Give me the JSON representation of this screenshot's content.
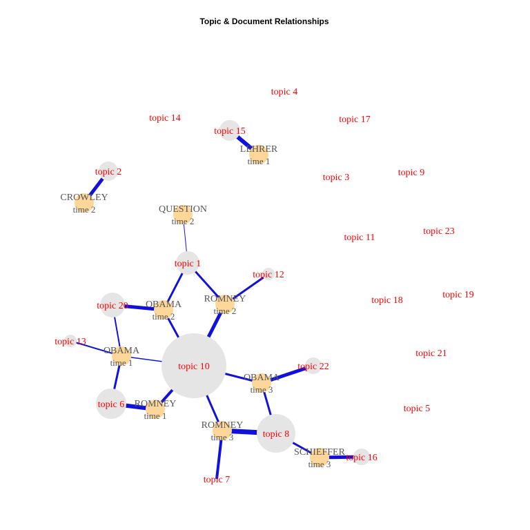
{
  "title": "Topic & Document Relationships",
  "colors": {
    "edge": "#1111dd",
    "topic_node": "#e5e5e5",
    "doc_node": "#fdd699",
    "topic_label": "#ff0000",
    "doc_label": "#555555"
  },
  "topics": [
    {
      "id": "t1",
      "label": "topic 1",
      "connected": true
    },
    {
      "id": "t2",
      "label": "topic 2",
      "connected": true
    },
    {
      "id": "t3",
      "label": "topic 3",
      "connected": false
    },
    {
      "id": "t4",
      "label": "topic 4",
      "connected": false
    },
    {
      "id": "t5",
      "label": "topic 5",
      "connected": false
    },
    {
      "id": "t6",
      "label": "topic 6",
      "connected": true
    },
    {
      "id": "t7",
      "label": "topic 7",
      "connected": true
    },
    {
      "id": "t8",
      "label": "topic 8",
      "connected": true
    },
    {
      "id": "t9",
      "label": "topic 9",
      "connected": false
    },
    {
      "id": "t10",
      "label": "topic 10",
      "connected": true
    },
    {
      "id": "t11",
      "label": "topic 11",
      "connected": false
    },
    {
      "id": "t12",
      "label": "topic 12",
      "connected": true
    },
    {
      "id": "t13",
      "label": "topic 13",
      "connected": true
    },
    {
      "id": "t14",
      "label": "topic 14",
      "connected": false
    },
    {
      "id": "t15",
      "label": "topic 15",
      "connected": true
    },
    {
      "id": "t16",
      "label": "topic 16",
      "connected": true
    },
    {
      "id": "t17",
      "label": "topic 17",
      "connected": false
    },
    {
      "id": "t18",
      "label": "topic 18",
      "connected": false
    },
    {
      "id": "t19",
      "label": "topic 19",
      "connected": false
    },
    {
      "id": "t20",
      "label": "topic 20",
      "connected": true
    },
    {
      "id": "t21",
      "label": "topic 21",
      "connected": false
    },
    {
      "id": "t22",
      "label": "topic 22",
      "connected": true
    },
    {
      "id": "t23",
      "label": "topic 23",
      "connected": false
    }
  ],
  "documents": [
    {
      "id": "lehrer1",
      "name": "LEHRER",
      "time": "time 1"
    },
    {
      "id": "crowley2",
      "name": "CROWLEY",
      "time": "time 2"
    },
    {
      "id": "question2",
      "name": "QUESTION",
      "time": "time 2"
    },
    {
      "id": "obama2",
      "name": "OBAMA",
      "time": "time 2"
    },
    {
      "id": "romney2",
      "name": "ROMNEY",
      "time": "time 2"
    },
    {
      "id": "obama1",
      "name": "OBAMA",
      "time": "time 1"
    },
    {
      "id": "romney1",
      "name": "ROMNEY",
      "time": "time 1"
    },
    {
      "id": "obama3",
      "name": "OBAMA",
      "time": "time 3"
    },
    {
      "id": "romney3",
      "name": "ROMNEY",
      "time": "time 3"
    },
    {
      "id": "schieffer3",
      "name": "SCHIEFFER",
      "time": "time 3"
    }
  ],
  "edges": [
    {
      "from": "t15",
      "to": "lehrer1"
    },
    {
      "from": "t2",
      "to": "crowley2"
    },
    {
      "from": "t1",
      "to": "question2"
    },
    {
      "from": "t1",
      "to": "obama2"
    },
    {
      "from": "t1",
      "to": "romney2"
    },
    {
      "from": "t12",
      "to": "romney2"
    },
    {
      "from": "t20",
      "to": "obama2"
    },
    {
      "from": "t10",
      "to": "obama2"
    },
    {
      "from": "t10",
      "to": "romney2"
    },
    {
      "from": "t20",
      "to": "obama1"
    },
    {
      "from": "t13",
      "to": "obama1"
    },
    {
      "from": "t10",
      "to": "obama1"
    },
    {
      "from": "t6",
      "to": "obama1"
    },
    {
      "from": "t6",
      "to": "romney1"
    },
    {
      "from": "t10",
      "to": "romney1"
    },
    {
      "from": "t10",
      "to": "obama3"
    },
    {
      "from": "t22",
      "to": "obama3"
    },
    {
      "from": "t10",
      "to": "romney3"
    },
    {
      "from": "t8",
      "to": "obama3"
    },
    {
      "from": "t8",
      "to": "romney3"
    },
    {
      "from": "t8",
      "to": "schieffer3"
    },
    {
      "from": "t16",
      "to": "schieffer3"
    },
    {
      "from": "t7",
      "to": "romney3"
    }
  ]
}
